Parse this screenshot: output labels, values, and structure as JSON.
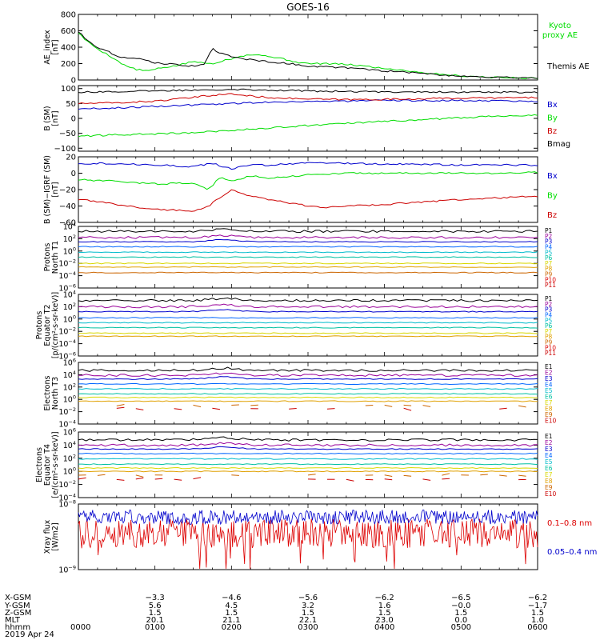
{
  "chart_data": {
    "type": "line",
    "title": "GOES-16",
    "panels": [
      {
        "id": "ae",
        "ylabel": [
          "AE_index",
          "[nT]"
        ],
        "ylim": [
          0,
          800
        ],
        "yticks": [
          0,
          200,
          400,
          600,
          800
        ],
        "tick_labels": [
          "0",
          "200",
          "400",
          "600",
          "800"
        ],
        "series": [
          {
            "name": "Kyoto proxy AE",
            "label_lines": [
              "Kyoto",
              "proxy AE"
            ],
            "color": "#00dd00",
            "x": [
              0,
              0.1,
              0.25,
              0.4,
              0.5,
              0.6,
              0.75,
              0.9,
              1.0,
              1.1,
              1.25,
              1.4,
              1.5,
              1.6,
              1.75,
              1.9,
              2.0,
              2.1,
              2.25,
              2.4,
              2.5,
              2.6,
              2.75,
              2.9,
              3.0,
              3.25,
              3.5,
              3.75,
              4.0,
              4.25,
              4.5,
              4.75,
              5.0,
              5.25,
              5.5,
              5.75,
              6.0
            ],
            "y": [
              580,
              480,
              380,
              300,
              240,
              180,
              130,
              110,
              130,
              150,
              170,
              200,
              230,
              210,
              200,
              240,
              260,
              290,
              310,
              300,
              290,
              270,
              240,
              210,
              200,
              200,
              190,
              170,
              140,
              120,
              90,
              70,
              50,
              40,
              30,
              25,
              20
            ]
          },
          {
            "name": "Themis AE",
            "color": "#000000",
            "x": [
              0,
              0.1,
              0.25,
              0.4,
              0.5,
              0.6,
              0.75,
              0.9,
              1.0,
              1.25,
              1.5,
              1.65,
              1.75,
              1.85,
              1.95,
              2.0,
              2.25,
              2.5,
              2.75,
              3.0,
              3.25,
              3.5,
              3.75,
              4.0,
              4.25,
              4.5,
              4.75,
              5.0,
              5.25,
              5.5,
              5.75,
              6.0
            ],
            "y": [
              590,
              500,
              400,
              340,
              300,
              270,
              260,
              240,
              210,
              190,
              170,
              200,
              380,
              330,
              300,
              280,
              250,
              220,
              200,
              170,
              160,
              150,
              130,
              110,
              100,
              80,
              60,
              50,
              40,
              30,
              30,
              25
            ]
          }
        ]
      },
      {
        "id": "bsm",
        "ylabel": [
          "B (SM)",
          "[nT]"
        ],
        "ylim": [
          -110,
          110
        ],
        "yticks": [
          100,
          50,
          0,
          -50,
          -100
        ],
        "tick_labels": [
          "100",
          "50",
          "0",
          "−50",
          "−100"
        ],
        "series": [
          {
            "name": "Bx",
            "color": "#0000cc",
            "x": [
              0,
              0.5,
              1.0,
              1.5,
              2.0,
              2.5,
              3.0,
              3.5,
              4.0,
              4.5,
              5.0,
              5.5,
              6.0
            ],
            "y": [
              32,
              35,
              40,
              45,
              50,
              55,
              57,
              58,
              60,
              60,
              60,
              59,
              58
            ]
          },
          {
            "name": "By",
            "color": "#00dd00",
            "x": [
              0,
              0.5,
              1.0,
              1.5,
              2.0,
              2.5,
              3.0,
              3.5,
              4.0,
              4.5,
              5.0,
              5.5,
              6.0
            ],
            "y": [
              -60,
              -55,
              -52,
              -48,
              -40,
              -32,
              -24,
              -17,
              -10,
              -4,
              2,
              8,
              12
            ]
          },
          {
            "name": "Bz",
            "color": "#cc0000",
            "x": [
              0,
              0.5,
              1.0,
              1.5,
              1.75,
              2.0,
              2.25,
              2.5,
              3.0,
              3.5,
              4.0,
              4.5,
              5.0,
              5.5,
              6.0
            ],
            "y": [
              50,
              52,
              58,
              70,
              78,
              82,
              75,
              70,
              65,
              63,
              64,
              66,
              68,
              69,
              70
            ]
          },
          {
            "name": "Bmag",
            "color": "#000000",
            "x": [
              0,
              0.5,
              1.0,
              1.5,
              2.0,
              2.5,
              3.0,
              3.5,
              4.0,
              4.5,
              5.0,
              5.5,
              6.0
            ],
            "y": [
              88,
              90,
              92,
              95,
              98,
              95,
              92,
              90,
              89,
              89,
              88,
              88,
              87
            ]
          }
        ]
      },
      {
        "id": "bigrf",
        "ylabel": [
          "B (SM)−IGRF (SM)",
          "[nT]"
        ],
        "ylim": [
          -60,
          20
        ],
        "yticks": [
          20,
          0,
          -20,
          -40,
          -60
        ],
        "tick_labels": [
          "20",
          "0",
          "−20",
          "−40",
          "−60"
        ],
        "series": [
          {
            "name": "Bx",
            "color": "#0000cc",
            "x": [
              0,
              0.5,
              1.0,
              1.5,
              1.75,
              2.0,
              2.25,
              2.5,
              3.0,
              3.5,
              4.0,
              4.5,
              5.0,
              5.5,
              6.0
            ],
            "y": [
              12,
              12,
              10,
              8,
              12,
              5,
              10,
              10,
              13,
              12,
              11,
              11,
              10,
              10,
              10
            ]
          },
          {
            "name": "By",
            "color": "#00dd00",
            "x": [
              0,
              0.5,
              1.0,
              1.5,
              1.7,
              1.85,
              2.0,
              2.25,
              2.5,
              3.0,
              3.5,
              4.0,
              4.5,
              5.0,
              5.5,
              6.0
            ],
            "y": [
              -8,
              -10,
              -13,
              -12,
              -20,
              -5,
              -10,
              -3,
              -6,
              -2,
              0,
              0,
              0,
              0,
              0,
              1
            ]
          },
          {
            "name": "Bz",
            "color": "#cc0000",
            "x": [
              0,
              0.5,
              1.0,
              1.5,
              1.7,
              1.85,
              2.0,
              2.25,
              2.5,
              3.0,
              3.25,
              3.5,
              4.0,
              4.5,
              5.0,
              5.5,
              6.0
            ],
            "y": [
              -32,
              -38,
              -44,
              -46,
              -40,
              -30,
              -20,
              -28,
              -32,
              -40,
              -42,
              -40,
              -38,
              -35,
              -32,
              -30,
              -28
            ]
          }
        ]
      },
      {
        "id": "pn",
        "ylabel": [
          "Protons",
          "North T1"
        ],
        "log": true,
        "ylim_exp": [
          -6,
          4
        ],
        "ytick_exps": [
          -6,
          -4,
          -2,
          0,
          2,
          4
        ],
        "channels": [
          "P1",
          "P2",
          "P3",
          "P4",
          "P5",
          "P6",
          "P7",
          "P8",
          "P9",
          "P10",
          "P11"
        ],
        "colors": [
          "#000000",
          "#990099",
          "#0000cc",
          "#0066ff",
          "#00bbcc",
          "#00c0a0",
          "#d8d800",
          "#e0a000",
          "#cc6600",
          "#dd0000",
          "#cc0000"
        ],
        "levels_exp": [
          3.2,
          2.2,
          1.5,
          0.7,
          -0.2,
          -1.0,
          -2.0,
          -2.6,
          -3.5,
          -4.5,
          -5.2
        ],
        "drawn": [
          true,
          true,
          true,
          true,
          true,
          true,
          true,
          true,
          true,
          false,
          false
        ]
      },
      {
        "id": "pe",
        "ylabel": [
          "Protons",
          "Equator T2",
          "[p/(cm²-s-sr-keV)]"
        ],
        "log": true,
        "ylim_exp": [
          -6,
          4
        ],
        "ytick_exps": [
          -6,
          -4,
          -2,
          0,
          2,
          4
        ],
        "channels": [
          "P1",
          "P2",
          "P3",
          "P4",
          "P5",
          "P6",
          "P7",
          "P8",
          "P9",
          "P10",
          "P11"
        ],
        "colors": [
          "#000000",
          "#990099",
          "#0000cc",
          "#0066ff",
          "#00bbcc",
          "#00c0a0",
          "#d8d800",
          "#e0a000",
          "#cc6600",
          "#dd0000",
          "#cc0000"
        ],
        "levels_exp": [
          3.0,
          2.0,
          1.2,
          0.2,
          -0.6,
          -1.4,
          -2.3,
          -2.8,
          -3.6,
          -4.5,
          -5.2
        ],
        "drawn": [
          true,
          true,
          true,
          true,
          true,
          true,
          true,
          true,
          false,
          false,
          false
        ]
      },
      {
        "id": "en",
        "ylabel": [
          "Electrons",
          "North T3"
        ],
        "log": true,
        "ylim_exp": [
          -4,
          6
        ],
        "ytick_exps": [
          -4,
          -2,
          0,
          2,
          4,
          6
        ],
        "channels": [
          "E1",
          "E2",
          "E3",
          "E4",
          "E5",
          "E6",
          "E7",
          "E8",
          "E9",
          "E10"
        ],
        "colors": [
          "#000000",
          "#990099",
          "#0000cc",
          "#0066ff",
          "#00bbcc",
          "#00c0a0",
          "#d8d800",
          "#e0a000",
          "#cc6600",
          "#cc0000"
        ],
        "levels_exp": [
          4.7,
          3.9,
          3.3,
          2.5,
          1.7,
          0.9,
          0.3,
          -0.3,
          -1.0,
          -1.5
        ],
        "drawn": [
          true,
          true,
          true,
          true,
          true,
          true,
          true,
          true,
          true,
          true
        ]
      },
      {
        "id": "ee",
        "ylabel": [
          "Electrons",
          "Equator T4",
          "[e/(cm²-s-sr-keV)]"
        ],
        "log": true,
        "ylim_exp": [
          -4,
          6
        ],
        "ytick_exps": [
          -4,
          -2,
          0,
          2,
          4,
          6
        ],
        "channels": [
          "E1",
          "E2",
          "E3",
          "E4",
          "E5",
          "E6",
          "E7",
          "E8",
          "E9",
          "E10"
        ],
        "colors": [
          "#000000",
          "#990099",
          "#0000cc",
          "#0066ff",
          "#00bbcc",
          "#00c0a0",
          "#d8d800",
          "#e0a000",
          "#cc6600",
          "#cc0000"
        ],
        "levels_exp": [
          4.8,
          4.0,
          3.4,
          2.7,
          1.9,
          1.1,
          0.5,
          0.0,
          -0.6,
          -1.2
        ],
        "drawn": [
          true,
          true,
          true,
          true,
          true,
          true,
          true,
          true,
          true,
          true
        ]
      },
      {
        "id": "xray",
        "ylabel": [
          "Xray flux",
          "[W/m2]"
        ],
        "log": true,
        "ylim_exp": [
          -9,
          -8
        ],
        "ytick_exps": [
          -9,
          -8
        ],
        "series": [
          {
            "name": "0.1–0.8 nm",
            "color": "#dd0000",
            "level_exp": -8.45
          },
          {
            "name": "0.05–0.4 nm",
            "color": "#0000cc",
            "level_exp": -8.2
          }
        ]
      }
    ],
    "x_axis": {
      "unit": "hours since 0000 UT",
      "xlim": [
        0,
        6
      ],
      "ticks": [
        0,
        1,
        2,
        3,
        4,
        5,
        6
      ],
      "rows": [
        {
          "label": "X-GSM",
          "values": [
            "",
            "−3.3",
            "−4.6",
            "−5.6",
            "−6.2",
            "−6.5",
            "−6.2"
          ]
        },
        {
          "label": "Y-GSM",
          "values": [
            "",
            "5.6",
            "4.5",
            "3.2",
            "1.6",
            "−0.0",
            "−1.7"
          ]
        },
        {
          "label": "Z-GSM",
          "values": [
            "",
            "1.5",
            "1.5",
            "1.5",
            "1.5",
            "1.5",
            "1.5"
          ]
        },
        {
          "label": "MLT",
          "values": [
            "",
            "20.1",
            "21.1",
            "22.1",
            "23.0",
            "0.0",
            "1.0"
          ]
        },
        {
          "label": "hhmm",
          "values": [
            "0000",
            "0100",
            "0200",
            "0300",
            "0400",
            "0500",
            "0600"
          ]
        }
      ],
      "date": "2019 Apr 24"
    }
  }
}
